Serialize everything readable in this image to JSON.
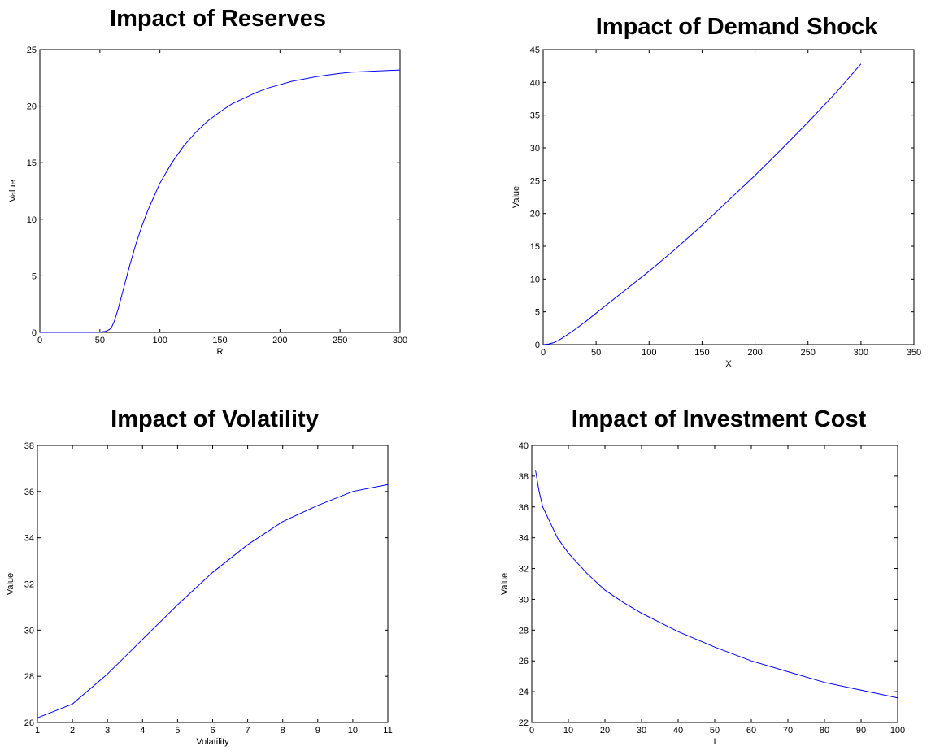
{
  "chart_data": [
    {
      "type": "line",
      "title": "Impact of Reserves",
      "xlabel": "R",
      "ylabel": "Value",
      "xlim": [
        0,
        300
      ],
      "ylim": [
        0,
        25
      ],
      "xticks": [
        0,
        50,
        100,
        150,
        200,
        250,
        300
      ],
      "yticks": [
        0,
        5,
        10,
        15,
        20,
        25
      ],
      "series": [
        {
          "color": "#0000ff",
          "x": [
            0,
            10,
            20,
            30,
            40,
            50,
            55,
            58,
            60,
            62,
            65,
            70,
            75,
            80,
            85,
            90,
            95,
            100,
            110,
            120,
            130,
            140,
            150,
            160,
            170,
            180,
            190,
            200,
            210,
            220,
            230,
            240,
            250,
            260,
            270,
            280,
            290,
            300
          ],
          "y": [
            0,
            0,
            0,
            0,
            0,
            0.02,
            0.1,
            0.25,
            0.5,
            1.0,
            2.0,
            4.0,
            6.0,
            7.8,
            9.4,
            10.8,
            12.0,
            13.2,
            15.0,
            16.5,
            17.7,
            18.7,
            19.5,
            20.2,
            20.7,
            21.2,
            21.6,
            21.9,
            22.2,
            22.4,
            22.6,
            22.75,
            22.9,
            23.0,
            23.05,
            23.1,
            23.15,
            23.2
          ]
        }
      ]
    },
    {
      "type": "line",
      "title": "Impact of Demand Shock",
      "xlabel": "X",
      "ylabel": "Value",
      "xlim": [
        0,
        350
      ],
      "ylim": [
        0,
        45
      ],
      "xticks": [
        0,
        50,
        100,
        150,
        200,
        250,
        300,
        350
      ],
      "yticks": [
        0,
        5,
        10,
        15,
        20,
        25,
        30,
        35,
        40,
        45
      ],
      "series": [
        {
          "color": "#0000ff",
          "x": [
            0,
            5,
            10,
            15,
            20,
            30,
            40,
            50,
            75,
            100,
            125,
            150,
            175,
            200,
            225,
            250,
            275,
            300
          ],
          "y": [
            0,
            0.1,
            0.3,
            0.7,
            1.2,
            2.3,
            3.5,
            4.8,
            8.0,
            11.2,
            14.6,
            18.2,
            22.0,
            25.8,
            29.8,
            33.9,
            38.2,
            42.8
          ]
        }
      ]
    },
    {
      "type": "line",
      "title": "Impact of Volatility",
      "xlabel": "Volatility",
      "ylabel": "Value",
      "xlim": [
        1,
        11
      ],
      "ylim": [
        26,
        38
      ],
      "xticks": [
        1,
        2,
        3,
        4,
        5,
        6,
        7,
        8,
        9,
        10,
        11
      ],
      "yticks": [
        26,
        28,
        30,
        32,
        34,
        36,
        38
      ],
      "series": [
        {
          "color": "#0000ff",
          "x": [
            1,
            2,
            3,
            4,
            5,
            6,
            7,
            8,
            9,
            10,
            11
          ],
          "y": [
            26.2,
            26.8,
            28.1,
            29.6,
            31.1,
            32.5,
            33.7,
            34.7,
            35.4,
            36.0,
            36.3
          ]
        }
      ]
    },
    {
      "type": "line",
      "title": "Impact of Investment Cost",
      "xlabel": "I",
      "ylabel": "Value",
      "xlim": [
        0,
        100
      ],
      "ylim": [
        22,
        40
      ],
      "xticks": [
        0,
        10,
        20,
        30,
        40,
        50,
        60,
        70,
        80,
        90,
        100
      ],
      "yticks": [
        22,
        24,
        26,
        28,
        30,
        32,
        34,
        36,
        38,
        40
      ],
      "series": [
        {
          "color": "#0000ff",
          "x": [
            1,
            2,
            3,
            5,
            7,
            10,
            15,
            20,
            25,
            30,
            40,
            50,
            60,
            70,
            80,
            90,
            100
          ],
          "y": [
            38.4,
            37.0,
            36.0,
            35.0,
            34.0,
            33.0,
            31.7,
            30.6,
            29.8,
            29.1,
            27.9,
            26.9,
            26.0,
            25.3,
            24.6,
            24.1,
            23.6
          ]
        }
      ]
    }
  ]
}
